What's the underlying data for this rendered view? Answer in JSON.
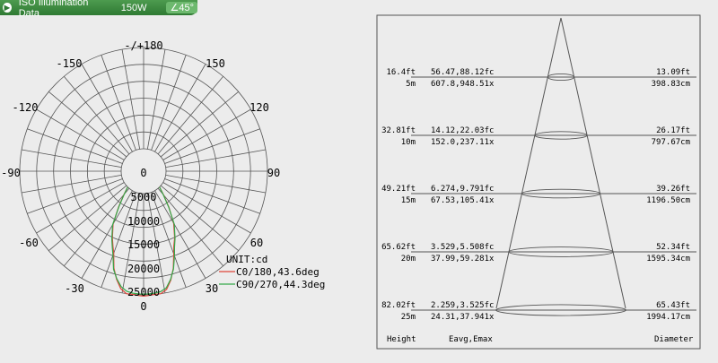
{
  "header": {
    "title": "ISO Illumination  Data",
    "wattage": "150W",
    "angle": "45°",
    "accent": "#2f7a33"
  },
  "polar": {
    "angle_labels": [
      "-/+180",
      "-150",
      "150",
      "-120",
      "120",
      "-90",
      "90",
      "-60",
      "60",
      "-30",
      "30",
      "0"
    ],
    "radial_labels": [
      "0",
      "5000",
      "10000",
      "15000",
      "20000",
      "25000"
    ],
    "unit": "UNIT:cd"
  },
  "chart_data": [
    {
      "type": "polar-line",
      "unit": "cd",
      "r_max": 25000,
      "angle_ticks_deg": [
        -180,
        -150,
        -120,
        -90,
        -60,
        -30,
        0,
        30,
        60,
        90,
        120,
        150
      ],
      "radial_ticks": [
        0,
        5000,
        10000,
        15000,
        20000,
        25000
      ],
      "legend_position": "bottom-right",
      "series": [
        {
          "name": "C0/180,43.6deg",
          "color": "#e0453a",
          "theta_deg": [
            -45,
            -40,
            -35,
            -30,
            -25,
            -22,
            -20,
            -17,
            -14,
            -11,
            -8,
            -5,
            -2,
            0,
            2,
            5,
            8,
            11,
            14,
            17,
            20,
            22,
            25,
            30,
            35,
            40,
            45
          ],
          "values": [
            0,
            2000,
            5200,
            9500,
            12700,
            14600,
            16000,
            19500,
            22000,
            24000,
            25000,
            25000,
            25200,
            25300,
            25200,
            25000,
            25000,
            24200,
            22200,
            19500,
            16200,
            14400,
            12600,
            9300,
            5400,
            2100,
            0
          ]
        },
        {
          "name": "C90/270,44.3deg",
          "color": "#34a84a",
          "theta_deg": [
            -45,
            -40,
            -35,
            -30,
            -25,
            -22,
            -20,
            -17,
            -14,
            -11,
            -8,
            -5,
            -2,
            0,
            2,
            5,
            8,
            11,
            14,
            17,
            20,
            22,
            25,
            30,
            35,
            40,
            45
          ],
          "values": [
            0,
            1900,
            5000,
            9800,
            13000,
            15000,
            16500,
            19800,
            21800,
            23500,
            24400,
            24700,
            24800,
            24800,
            24800,
            24700,
            24500,
            23800,
            22000,
            19700,
            16700,
            14800,
            12800,
            9600,
            5200,
            2000,
            0
          ]
        }
      ]
    },
    {
      "type": "table",
      "columns": [
        "Height",
        "Eavg,Emax",
        "Diameter"
      ],
      "rows": [
        {
          "height_ft": "16.4ft",
          "height_m": "5m",
          "e_fc": "56.47,88.12fc",
          "e_lx": "607.8,948.51x",
          "dia_ft": "13.09ft",
          "dia_cm": "398.83cm"
        },
        {
          "height_ft": "32.81ft",
          "height_m": "10m",
          "e_fc": "14.12,22.03fc",
          "e_lx": "152.0,237.11x",
          "dia_ft": "26.17ft",
          "dia_cm": "797.67cm"
        },
        {
          "height_ft": "49.21ft",
          "height_m": "15m",
          "e_fc": "6.274,9.791fc",
          "e_lx": "67.53,105.41x",
          "dia_ft": "39.26ft",
          "dia_cm": "1196.50cm"
        },
        {
          "height_ft": "65.62ft",
          "height_m": "20m",
          "e_fc": "3.529,5.508fc",
          "e_lx": "37.99,59.281x",
          "dia_ft": "52.34ft",
          "dia_cm": "1595.34cm"
        },
        {
          "height_ft": "82.02ft",
          "height_m": "25m",
          "e_fc": "2.259,3.525fc",
          "e_lx": "24.31,37.941x",
          "dia_ft": "65.43ft",
          "dia_cm": "1994.17cm"
        }
      ]
    }
  ],
  "colors": {
    "background": "#ececec",
    "grid": "#555555",
    "c0": "#e0453a",
    "c90": "#34a84a"
  }
}
